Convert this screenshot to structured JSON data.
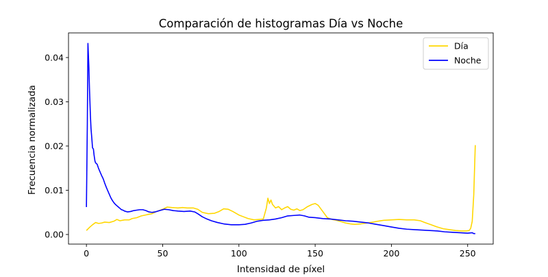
{
  "chart_data": {
    "type": "line",
    "title": "Comparación de histogramas Día vs Noche",
    "xlabel": "Intensidad de píxel",
    "ylabel": "Frecuencia normalizada",
    "xlim": [
      -11.75,
      266.75
    ],
    "ylim": [
      -0.00217,
      0.04557
    ],
    "xticks": [
      0,
      50,
      100,
      150,
      200,
      250
    ],
    "yticks": [
      0.0,
      0.01,
      0.02,
      0.03,
      0.04
    ],
    "ytick_labels": [
      "0.00",
      "0.01",
      "0.02",
      "0.03",
      "0.04"
    ],
    "grid": false,
    "legend_position": "top-right",
    "series": [
      {
        "name": "Día",
        "color": "#FFD700",
        "points": [
          [
            0,
            0.0009
          ],
          [
            2,
            0.0016
          ],
          [
            4,
            0.0022
          ],
          [
            6,
            0.0027
          ],
          [
            8,
            0.0025
          ],
          [
            10,
            0.0026
          ],
          [
            12,
            0.0028
          ],
          [
            15,
            0.0027
          ],
          [
            18,
            0.003
          ],
          [
            20,
            0.0034
          ],
          [
            22,
            0.0031
          ],
          [
            25,
            0.0033
          ],
          [
            28,
            0.0033
          ],
          [
            30,
            0.0036
          ],
          [
            33,
            0.0038
          ],
          [
            36,
            0.0042
          ],
          [
            40,
            0.0045
          ],
          [
            43,
            0.0047
          ],
          [
            46,
            0.0052
          ],
          [
            50,
            0.0057
          ],
          [
            53,
            0.0062
          ],
          [
            56,
            0.0061
          ],
          [
            60,
            0.006
          ],
          [
            63,
            0.0061
          ],
          [
            66,
            0.006
          ],
          [
            70,
            0.006
          ],
          [
            73,
            0.0057
          ],
          [
            76,
            0.005
          ],
          [
            80,
            0.0047
          ],
          [
            84,
            0.0048
          ],
          [
            87,
            0.0052
          ],
          [
            90,
            0.0058
          ],
          [
            93,
            0.0057
          ],
          [
            96,
            0.0052
          ],
          [
            100,
            0.0044
          ],
          [
            103,
            0.004
          ],
          [
            106,
            0.0036
          ],
          [
            110,
            0.0033
          ],
          [
            113,
            0.0034
          ],
          [
            116,
            0.0035
          ],
          [
            118,
            0.006
          ],
          [
            119,
            0.0082
          ],
          [
            120,
            0.007
          ],
          [
            121,
            0.0078
          ],
          [
            122,
            0.0068
          ],
          [
            124,
            0.006
          ],
          [
            126,
            0.0063
          ],
          [
            128,
            0.0056
          ],
          [
            130,
            0.006
          ],
          [
            132,
            0.0063
          ],
          [
            134,
            0.0057
          ],
          [
            136,
            0.0055
          ],
          [
            138,
            0.0058
          ],
          [
            140,
            0.0054
          ],
          [
            142,
            0.0056
          ],
          [
            145,
            0.0063
          ],
          [
            148,
            0.0068
          ],
          [
            150,
            0.007
          ],
          [
            152,
            0.0066
          ],
          [
            155,
            0.0052
          ],
          [
            158,
            0.0038
          ],
          [
            161,
            0.0034
          ],
          [
            164,
            0.0032
          ],
          [
            167,
            0.0029
          ],
          [
            170,
            0.0026
          ],
          [
            173,
            0.0024
          ],
          [
            176,
            0.0023
          ],
          [
            180,
            0.0024
          ],
          [
            184,
            0.0026
          ],
          [
            188,
            0.0028
          ],
          [
            191,
            0.003
          ],
          [
            195,
            0.0032
          ],
          [
            200,
            0.0033
          ],
          [
            205,
            0.0034
          ],
          [
            210,
            0.0033
          ],
          [
            215,
            0.0033
          ],
          [
            219,
            0.0031
          ],
          [
            222,
            0.0027
          ],
          [
            226,
            0.0022
          ],
          [
            230,
            0.0017
          ],
          [
            234,
            0.0013
          ],
          [
            238,
            0.0011
          ],
          [
            242,
            0.0009
          ],
          [
            246,
            0.0008
          ],
          [
            249,
            0.0008
          ],
          [
            251,
            0.0009
          ],
          [
            252,
            0.0014
          ],
          [
            253,
            0.003
          ],
          [
            254,
            0.009
          ],
          [
            255,
            0.0202
          ]
        ]
      },
      {
        "name": "Noche",
        "color": "#0000FF",
        "points": [
          [
            0,
            0.0062
          ],
          [
            0.6,
            0.025
          ],
          [
            1,
            0.0432
          ],
          [
            1.6,
            0.038
          ],
          [
            2,
            0.033
          ],
          [
            2.6,
            0.027
          ],
          [
            3,
            0.024
          ],
          [
            3.6,
            0.0215
          ],
          [
            4,
            0.0196
          ],
          [
            4.6,
            0.0193
          ],
          [
            5,
            0.018
          ],
          [
            5.6,
            0.0166
          ],
          [
            6,
            0.0162
          ],
          [
            7,
            0.0159
          ],
          [
            8,
            0.0149
          ],
          [
            9,
            0.0141
          ],
          [
            10,
            0.0133
          ],
          [
            11,
            0.0126
          ],
          [
            12,
            0.0116
          ],
          [
            13,
            0.0107
          ],
          [
            14,
            0.0099
          ],
          [
            15,
            0.0091
          ],
          [
            16,
            0.0083
          ],
          [
            17,
            0.0077
          ],
          [
            18,
            0.0072
          ],
          [
            19,
            0.0068
          ],
          [
            20,
            0.0065
          ],
          [
            21,
            0.0062
          ],
          [
            22,
            0.0059
          ],
          [
            23,
            0.0056
          ],
          [
            24,
            0.0055
          ],
          [
            25,
            0.0053
          ],
          [
            27,
            0.0051
          ],
          [
            29,
            0.0052
          ],
          [
            31,
            0.0054
          ],
          [
            33,
            0.0055
          ],
          [
            35,
            0.0056
          ],
          [
            37,
            0.0056
          ],
          [
            39,
            0.0054
          ],
          [
            41,
            0.0051
          ],
          [
            43,
            0.005
          ],
          [
            45,
            0.0051
          ],
          [
            48,
            0.0054
          ],
          [
            51,
            0.0057
          ],
          [
            54,
            0.0056
          ],
          [
            57,
            0.0054
          ],
          [
            60,
            0.0053
          ],
          [
            64,
            0.0052
          ],
          [
            68,
            0.0053
          ],
          [
            71,
            0.0051
          ],
          [
            73,
            0.0047
          ],
          [
            76,
            0.004
          ],
          [
            79,
            0.0035
          ],
          [
            82,
            0.0031
          ],
          [
            86,
            0.0027
          ],
          [
            90,
            0.0024
          ],
          [
            95,
            0.0022
          ],
          [
            100,
            0.0022
          ],
          [
            104,
            0.0023
          ],
          [
            108,
            0.0026
          ],
          [
            112,
            0.003
          ],
          [
            116,
            0.0032
          ],
          [
            120,
            0.0033
          ],
          [
            124,
            0.0035
          ],
          [
            128,
            0.0038
          ],
          [
            132,
            0.0042
          ],
          [
            136,
            0.0043
          ],
          [
            140,
            0.0044
          ],
          [
            143,
            0.0042
          ],
          [
            146,
            0.0039
          ],
          [
            150,
            0.0038
          ],
          [
            155,
            0.0036
          ],
          [
            160,
            0.0035
          ],
          [
            165,
            0.0033
          ],
          [
            170,
            0.0031
          ],
          [
            175,
            0.003
          ],
          [
            180,
            0.0028
          ],
          [
            185,
            0.0026
          ],
          [
            190,
            0.0023
          ],
          [
            195,
            0.002
          ],
          [
            200,
            0.0017
          ],
          [
            205,
            0.0014
          ],
          [
            210,
            0.0012
          ],
          [
            215,
            0.0011
          ],
          [
            220,
            0.001
          ],
          [
            225,
            0.0009
          ],
          [
            230,
            0.0008
          ],
          [
            235,
            0.0006
          ],
          [
            240,
            0.0005
          ],
          [
            245,
            0.0004
          ],
          [
            250,
            0.0003
          ],
          [
            253,
            0.0004
          ],
          [
            254,
            0.0002
          ],
          [
            255,
            0.0002
          ]
        ]
      }
    ]
  }
}
